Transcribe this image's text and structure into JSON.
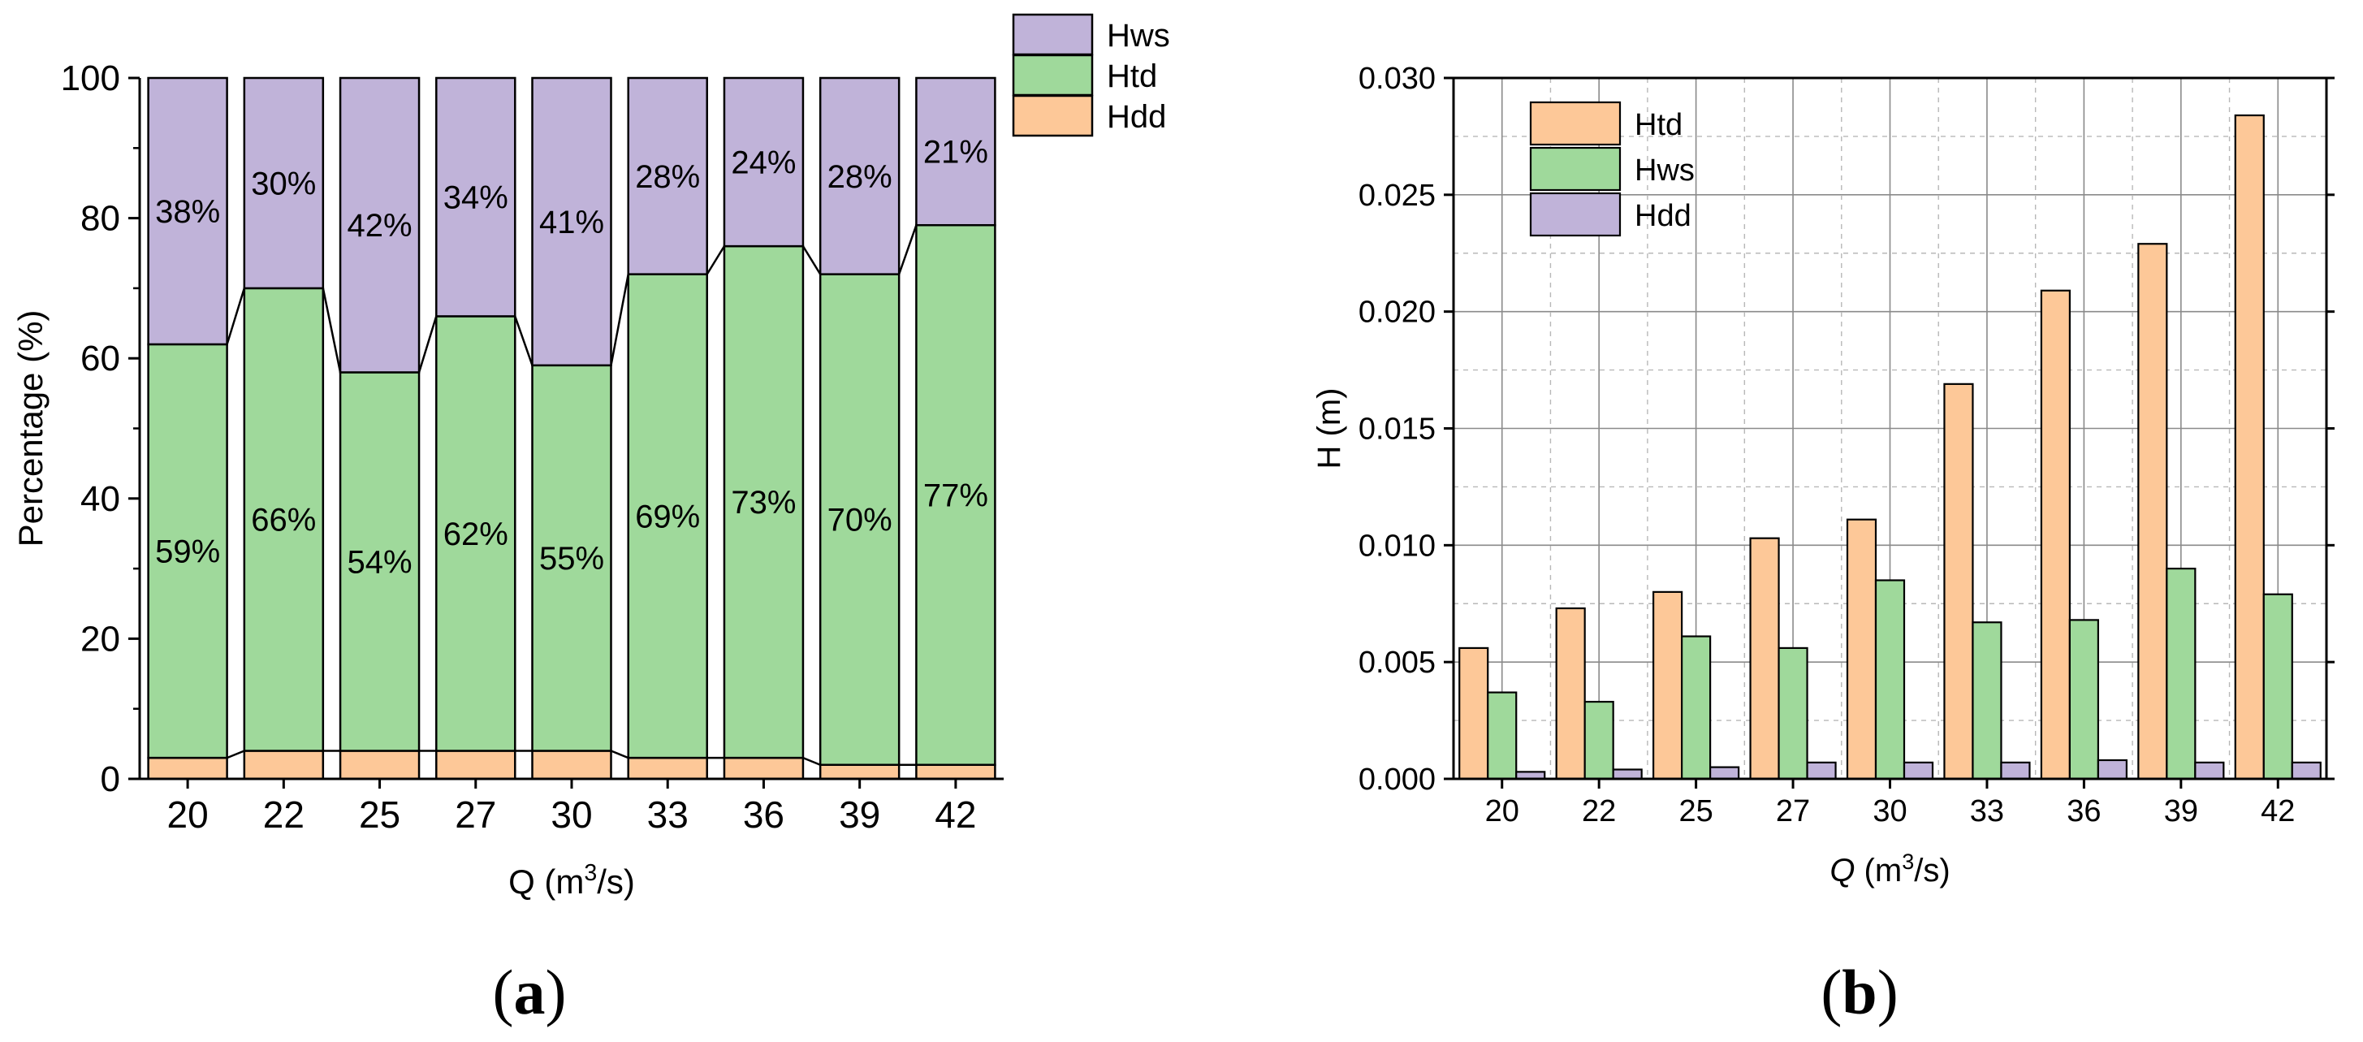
{
  "chart_data": [
    {
      "panel": "(a)",
      "type": "bar",
      "stacked": true,
      "xlabel": "Q (m",
      "xlabel_sup": "3",
      "xlabel_tail": "/s)",
      "ylabel": "Percentage (%)",
      "ylim": [
        0,
        100
      ],
      "yticks": [
        "0",
        "20",
        "40",
        "60",
        "80",
        "100"
      ],
      "categories": [
        "20",
        "22",
        "25",
        "27",
        "30",
        "33",
        "36",
        "39",
        "42"
      ],
      "series": [
        {
          "name": "Hdd",
          "color": "#fdc898",
          "values": [
            3,
            4,
            4,
            4,
            4,
            3,
            3,
            2,
            2
          ]
        },
        {
          "name": "Htd",
          "color": "#9fd99b",
          "values": [
            59,
            66,
            54,
            62,
            55,
            69,
            73,
            70,
            77
          ],
          "labels": [
            "59%",
            "66%",
            "54%",
            "62%",
            "55%",
            "69%",
            "73%",
            "70%",
            "77%"
          ]
        },
        {
          "name": "Hws",
          "color": "#c0b3d9",
          "values": [
            38,
            30,
            42,
            34,
            41,
            28,
            24,
            28,
            21
          ],
          "labels": [
            "38%",
            "30%",
            "42%",
            "34%",
            "41%",
            "28%",
            "24%",
            "28%",
            "21%"
          ]
        }
      ],
      "legend": [
        "Hws",
        "Htd",
        "Hdd"
      ],
      "legend_position": "top-right outside"
    },
    {
      "panel": "(b)",
      "type": "bar",
      "stacked": false,
      "xlabel": "Q (m",
      "xlabel_sup": "3",
      "xlabel_tail": "/s)",
      "ylabel": "H (m)",
      "ylim": [
        0,
        0.03
      ],
      "yticks": [
        "0.000",
        "0.005",
        "0.010",
        "0.015",
        "0.020",
        "0.025",
        "0.030"
      ],
      "grid": true,
      "categories": [
        "20",
        "22",
        "25",
        "27",
        "30",
        "33",
        "36",
        "39",
        "42"
      ],
      "series": [
        {
          "name": "Htd",
          "color": "#fdc898",
          "values": [
            0.0056,
            0.0073,
            0.008,
            0.0103,
            0.0111,
            0.0169,
            0.0209,
            0.0229,
            0.0284
          ]
        },
        {
          "name": "Hws",
          "color": "#9fd99b",
          "values": [
            0.0037,
            0.0033,
            0.0061,
            0.0056,
            0.0085,
            0.0067,
            0.0068,
            0.009,
            0.0079
          ]
        },
        {
          "name": "Hdd",
          "color": "#c0b3d9",
          "values": [
            0.0003,
            0.0004,
            0.0005,
            0.0007,
            0.0007,
            0.0007,
            0.0008,
            0.0007,
            0.0007
          ]
        }
      ],
      "legend": [
        "Htd",
        "Hws",
        "Hdd"
      ],
      "legend_position": "top-left"
    }
  ]
}
